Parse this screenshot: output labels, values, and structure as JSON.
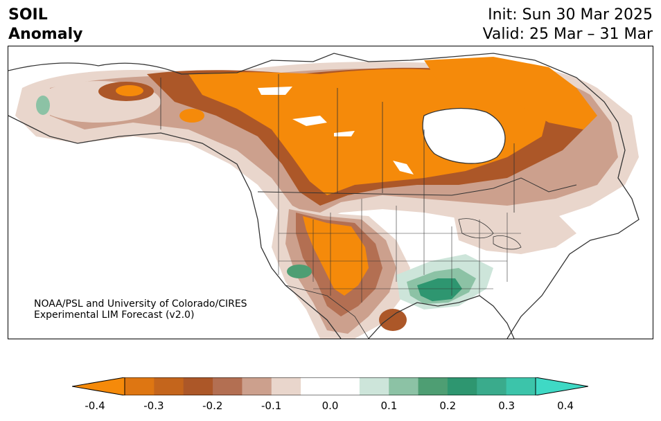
{
  "header": {
    "variable_line1": "SOIL",
    "variable_line2": "Anomaly",
    "init": "Init: Sun 30 Mar 2025",
    "valid": "Valid: 25 Mar – 31 Mar"
  },
  "credit": {
    "line1": "NOAA/PSL and University of Colorado/CIRES",
    "line2": "Experimental LIM Forecast (v2.0)"
  },
  "colorbar": {
    "ticks": [
      "-0.4",
      "-0.3",
      "-0.2",
      "-0.1",
      "0.0",
      "0.1",
      "0.2",
      "0.3",
      "0.4"
    ],
    "colors": [
      "#f58a0a",
      "#de7612",
      "#c4651c",
      "#ac5728",
      "#b36f52",
      "#cca08d",
      "#e9d6cc",
      "#ffffff",
      "#ffffff",
      "#cde5da",
      "#8cc2a5",
      "#4e9e73",
      "#2e9670",
      "#3aab8c",
      "#3cc4aa",
      "#3fd9c5"
    ]
  }
}
